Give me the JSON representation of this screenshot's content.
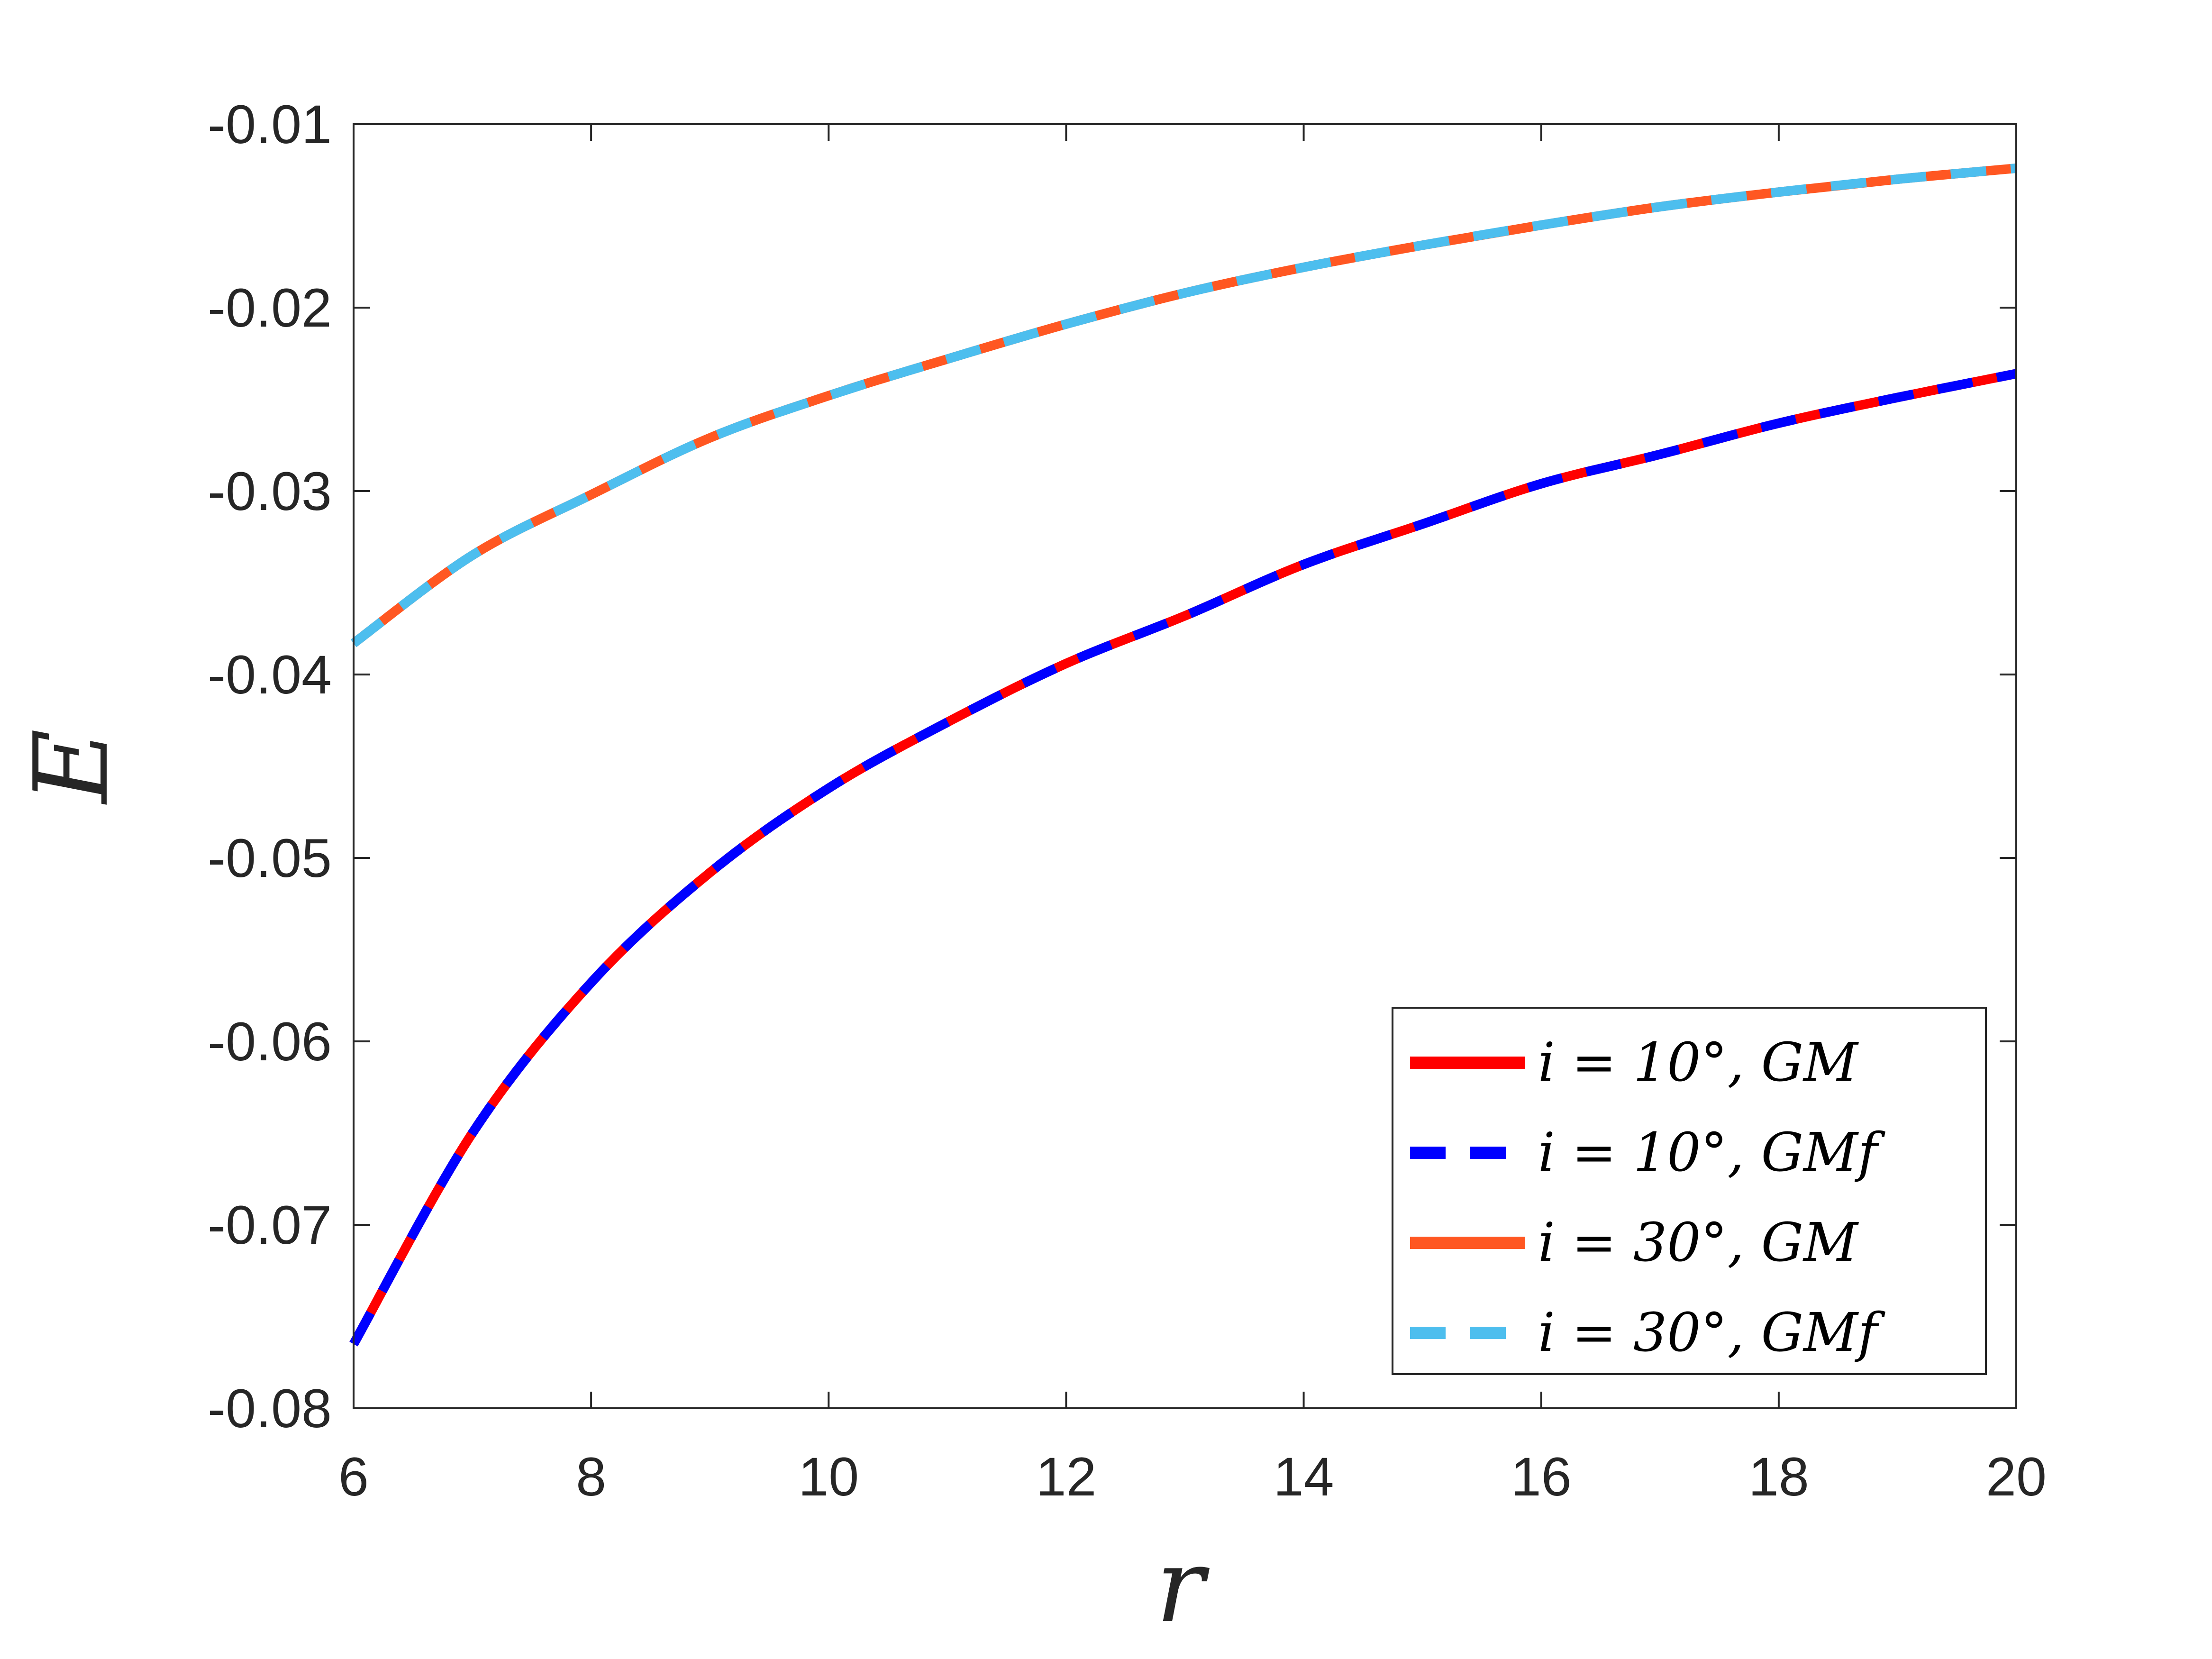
{
  "chart_data": {
    "type": "line",
    "xlabel": "r",
    "ylabel": "E",
    "xlim": [
      6,
      20
    ],
    "ylim": [
      -0.08,
      -0.01
    ],
    "xticks": [
      "6",
      "8",
      "10",
      "12",
      "14",
      "16",
      "18",
      "20"
    ],
    "yticks": [
      "-0.01",
      "-0.02",
      "-0.03",
      "-0.04",
      "-0.05",
      "-0.06",
      "-0.07",
      "-0.08"
    ],
    "grid": false,
    "legend_position": "bottom-right",
    "x": [
      6,
      7,
      8,
      9,
      10,
      11,
      12,
      13,
      14,
      15,
      16,
      17,
      18,
      19,
      20
    ],
    "series": [
      {
        "name": "i = 10°, GM",
        "color": "#ff0000",
        "style": "solid",
        "values": [
          -0.0765,
          -0.065,
          -0.0568,
          -0.0508,
          -0.0462,
          -0.0426,
          -0.0394,
          -0.0368,
          -0.034,
          -0.0318,
          -0.0296,
          -0.028,
          -0.0263,
          -0.0249,
          -0.0236
        ]
      },
      {
        "name": "i = 10°, GMf",
        "color": "#0000ff",
        "style": "dashed",
        "values": [
          -0.0765,
          -0.065,
          -0.0568,
          -0.0508,
          -0.0462,
          -0.0426,
          -0.0394,
          -0.0368,
          -0.034,
          -0.0318,
          -0.0296,
          -0.028,
          -0.0263,
          -0.0249,
          -0.0236
        ]
      },
      {
        "name": "i = 30°, GM",
        "color": "#ff5722",
        "style": "solid",
        "values": [
          -0.0383,
          -0.0335,
          -0.0302,
          -0.0271,
          -0.0248,
          -0.0228,
          -0.0209,
          -0.0192,
          -0.0178,
          -0.0166,
          -0.0155,
          -0.0145,
          -0.0137,
          -0.013,
          -0.0124
        ]
      },
      {
        "name": "i = 30°, GMf",
        "color": "#4dbeee",
        "style": "dashed",
        "values": [
          -0.0383,
          -0.0335,
          -0.0302,
          -0.0271,
          -0.0248,
          -0.0228,
          -0.0209,
          -0.0192,
          -0.0178,
          -0.0166,
          -0.0155,
          -0.0145,
          -0.0137,
          -0.013,
          -0.0124
        ]
      }
    ]
  }
}
